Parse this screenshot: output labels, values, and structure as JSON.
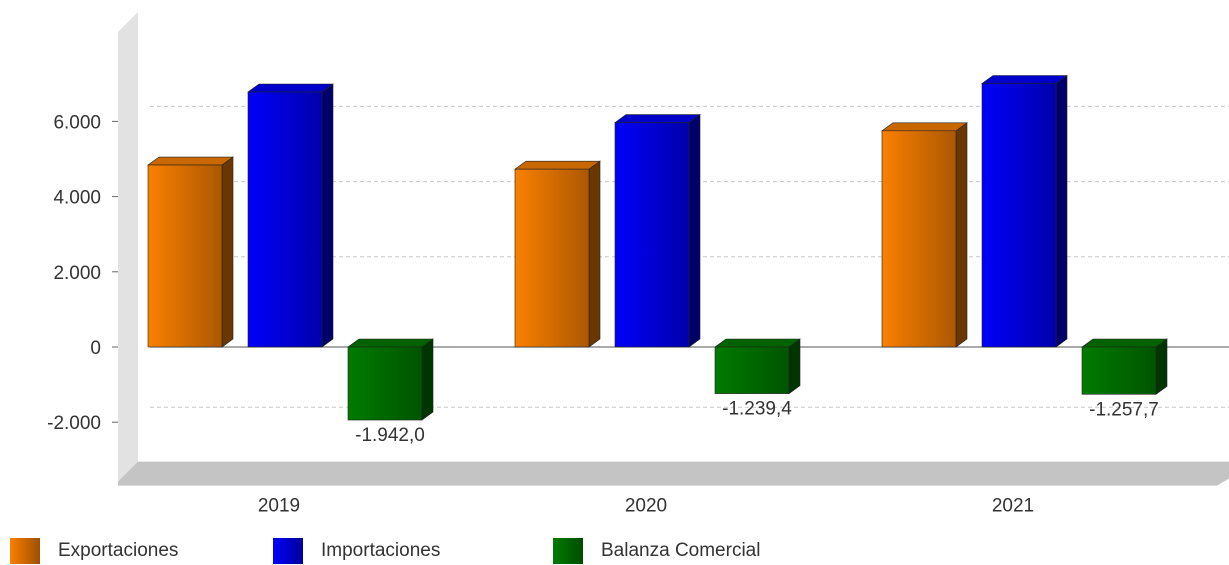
{
  "chart_data": {
    "type": "bar",
    "title": "",
    "xlabel": "",
    "ylabel": "",
    "categories": [
      "2019",
      "2020",
      "2021"
    ],
    "ylim": [
      -3500,
      8000
    ],
    "yticks": [
      -2000,
      0,
      2000,
      4000,
      6000
    ],
    "ytick_labels": [
      "-2.000",
      "0",
      "2.000",
      "4.000",
      "6.000"
    ],
    "grid": true,
    "legend_position": "bottom",
    "series": [
      {
        "name": "Exportaciones",
        "values": [
          4840,
          4730,
          5750
        ],
        "color": "#ee7a00",
        "data_labels": [
          "",
          "",
          ""
        ]
      },
      {
        "name": "Importaciones",
        "values": [
          6782,
          5969,
          7008
        ],
        "color": "#0000ee",
        "data_labels": [
          "",
          "",
          ""
        ]
      },
      {
        "name": "Balanza Comercial",
        "values": [
          -1942.0,
          -1239.4,
          -1257.7
        ],
        "color": "#007500",
        "data_labels": [
          "-1.942,0",
          "-1.239,4",
          "-1.257,7"
        ]
      }
    ]
  }
}
